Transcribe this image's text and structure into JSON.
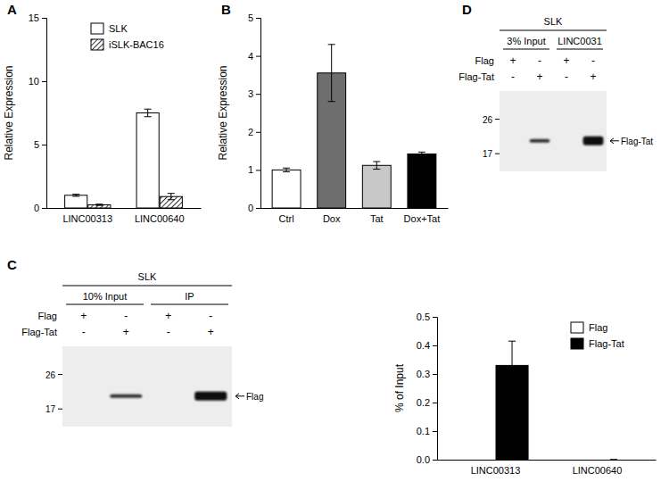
{
  "chart_data": [
    {
      "type": "bar",
      "title": "A",
      "y_label": "Relative Expression",
      "categories": [
        "LINC00313",
        "LINC00640"
      ],
      "series": [
        {
          "name": "SLK",
          "color": "#ffffff",
          "values": [
            1.0,
            7.5
          ],
          "errors": [
            0.08,
            0.3
          ]
        },
        {
          "name": "iSLK-BAC16",
          "color": "#000000",
          "marker": "hatch",
          "values": [
            0.25,
            0.9
          ],
          "errors": [
            0.05,
            0.25
          ]
        }
      ],
      "ylim": [
        0,
        15
      ],
      "yticks": [
        0,
        5,
        10,
        15
      ],
      "legend": "top-left"
    },
    {
      "type": "bar",
      "title": "B",
      "y_label": "Relative Expression",
      "categories": [
        "Ctrl",
        "Dox",
        "Tat",
        "Dox+Tat"
      ],
      "values": [
        1.0,
        3.55,
        1.12,
        1.42
      ],
      "errors": [
        0.05,
        0.75,
        0.1,
        0.05
      ],
      "colors": [
        "#ffffff",
        "#6e6e6e",
        "#c8c8c8",
        "#000000"
      ],
      "ylim": [
        0,
        5
      ],
      "yticks": [
        0,
        1,
        2,
        3,
        4,
        5
      ]
    },
    {
      "type": "bar",
      "y_label": "% of Input",
      "categories": [
        "LINC00313",
        "LINC00640"
      ],
      "series": [
        {
          "name": "Flag",
          "color": "#ffffff",
          "values": [
            0,
            0
          ]
        },
        {
          "name": "Flag-Tat",
          "color": "#000000",
          "values": [
            0.33,
            0
          ],
          "errors": [
            0.085,
            0
          ]
        }
      ],
      "ylim": [
        0,
        0.5
      ],
      "yticks": [
        {
          "value": 0,
          "label": "0.0"
        },
        0.1,
        0.2,
        0.3,
        0.4,
        0.5
      ],
      "legend": "top-right"
    }
  ],
  "blots": [
    {
      "title": "C",
      "cell_line": "SLK",
      "groups": [
        "10% Input",
        "IP"
      ],
      "rows": [
        {
          "label": "Flag",
          "signs": [
            "+",
            "-",
            "+",
            "-"
          ]
        },
        {
          "label": "Flag-Tat",
          "signs": [
            "-",
            "+",
            "-",
            "+"
          ]
        }
      ],
      "markers": [
        26,
        17
      ],
      "band_label": "Flag"
    },
    {
      "title": "D",
      "cell_line": "SLK",
      "groups": [
        "3% Input",
        "LINC0031"
      ],
      "rows": [
        {
          "label": "Flag",
          "signs": [
            "+",
            "-",
            "+",
            "-"
          ]
        },
        {
          "label": "Flag-Tat",
          "signs": [
            "-",
            "+",
            "-",
            "+"
          ]
        }
      ],
      "markers": [
        26,
        17
      ],
      "band_label": "Flag-Tat"
    }
  ]
}
